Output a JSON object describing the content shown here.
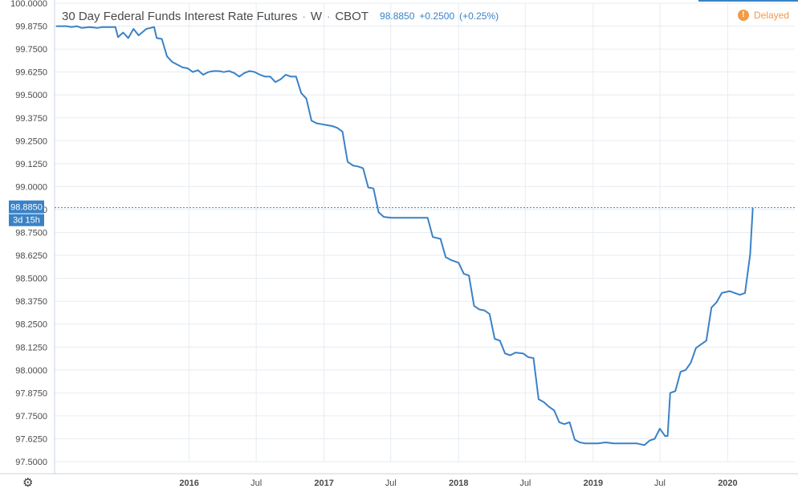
{
  "legend": {
    "title": "30 Day Federal Funds Interest Rate Futures",
    "separator": "·",
    "interval": "W",
    "exchange": "CBOT",
    "price": "98.8850",
    "change": "+0.2500",
    "change_pct": "(+0.25%)"
  },
  "status": {
    "delayed_label": "Delayed",
    "delayed_icon": "!"
  },
  "price_label": {
    "value": "98.8850",
    "countdown": "3d 15h"
  },
  "colors": {
    "line": "#3a82c6",
    "grid": "#e6ecf2",
    "axis_text": "#4a4a4a",
    "price_label_bg": "#3a82c6",
    "delayed": "#f29a47"
  },
  "chart_data": {
    "type": "line",
    "title": "30 Day Federal Funds Interest Rate Futures",
    "ylim": [
      97.5,
      100.0
    ],
    "y_ticks": [
      "97.5000",
      "97.6250",
      "97.7500",
      "97.8750",
      "98.0000",
      "98.1250",
      "98.2500",
      "98.3750",
      "98.5000",
      "98.6250",
      "98.7500",
      "98.8750",
      "99.0000",
      "99.1250",
      "99.2500",
      "99.3750",
      "99.5000",
      "99.6250",
      "99.7500",
      "99.8750",
      "100.0000"
    ],
    "x_range": [
      "2015-01-01",
      "2020-07-01"
    ],
    "x_ticks": [
      {
        "label": "2016",
        "date": "2016-01-01"
      },
      {
        "label": "Jul",
        "date": "2016-07-01"
      },
      {
        "label": "2017",
        "date": "2017-01-01"
      },
      {
        "label": "Jul",
        "date": "2017-07-01"
      },
      {
        "label": "2018",
        "date": "2018-01-01"
      },
      {
        "label": "Jul",
        "date": "2018-07-01"
      },
      {
        "label": "2019",
        "date": "2019-01-01"
      },
      {
        "label": "Jul",
        "date": "2019-07-01"
      },
      {
        "label": "2020",
        "date": "2020-01-01"
      }
    ],
    "current_value": 98.885,
    "grid": true,
    "series": [
      {
        "points": [
          [
            "2015-01-05",
            99.875
          ],
          [
            "2015-02-02",
            99.875
          ],
          [
            "2015-02-16",
            99.87
          ],
          [
            "2015-03-02",
            99.875
          ],
          [
            "2015-03-16",
            99.865
          ],
          [
            "2015-04-06",
            99.87
          ],
          [
            "2015-04-27",
            99.865
          ],
          [
            "2015-05-11",
            99.87
          ],
          [
            "2015-06-01",
            99.87
          ],
          [
            "2015-06-15",
            99.87
          ],
          [
            "2015-06-22",
            99.815
          ],
          [
            "2015-07-06",
            99.84
          ],
          [
            "2015-07-20",
            99.81
          ],
          [
            "2015-08-03",
            99.86
          ],
          [
            "2015-08-17",
            99.825
          ],
          [
            "2015-09-07",
            99.86
          ],
          [
            "2015-09-28",
            99.87
          ],
          [
            "2015-10-05",
            99.81
          ],
          [
            "2015-10-19",
            99.805
          ],
          [
            "2015-11-02",
            99.71
          ],
          [
            "2015-11-16",
            99.68
          ],
          [
            "2015-11-30",
            99.665
          ],
          [
            "2015-12-14",
            99.65
          ],
          [
            "2015-12-28",
            99.645
          ],
          [
            "2016-01-11",
            99.625
          ],
          [
            "2016-01-25",
            99.635
          ],
          [
            "2016-02-08",
            99.61
          ],
          [
            "2016-02-22",
            99.625
          ],
          [
            "2016-03-07",
            99.63
          ],
          [
            "2016-03-21",
            99.63
          ],
          [
            "2016-04-04",
            99.625
          ],
          [
            "2016-04-18",
            99.63
          ],
          [
            "2016-05-02",
            99.62
          ],
          [
            "2016-05-16",
            99.6
          ],
          [
            "2016-05-30",
            99.62
          ],
          [
            "2016-06-13",
            99.63
          ],
          [
            "2016-06-27",
            99.625
          ],
          [
            "2016-07-11",
            99.61
          ],
          [
            "2016-07-25",
            99.6
          ],
          [
            "2016-08-08",
            99.6
          ],
          [
            "2016-08-22",
            99.57
          ],
          [
            "2016-09-05",
            99.585
          ],
          [
            "2016-09-19",
            99.61
          ],
          [
            "2016-10-03",
            99.6
          ],
          [
            "2016-10-17",
            99.6
          ],
          [
            "2016-10-31",
            99.51
          ],
          [
            "2016-11-14",
            99.48
          ],
          [
            "2016-11-28",
            99.36
          ],
          [
            "2016-12-12",
            99.345
          ],
          [
            "2016-12-26",
            99.34
          ],
          [
            "2017-01-09",
            99.335
          ],
          [
            "2017-01-23",
            99.33
          ],
          [
            "2017-02-06",
            99.32
          ],
          [
            "2017-02-20",
            99.3
          ],
          [
            "2017-03-06",
            99.135
          ],
          [
            "2017-03-20",
            99.115
          ],
          [
            "2017-04-03",
            99.11
          ],
          [
            "2017-04-17",
            99.1
          ],
          [
            "2017-05-01",
            98.995
          ],
          [
            "2017-05-15",
            98.99
          ],
          [
            "2017-05-29",
            98.86
          ],
          [
            "2017-06-12",
            98.835
          ],
          [
            "2017-07-03",
            98.83
          ],
          [
            "2017-07-31",
            98.83
          ],
          [
            "2017-09-04",
            98.83
          ],
          [
            "2017-10-09",
            98.83
          ],
          [
            "2017-10-23",
            98.725
          ],
          [
            "2017-11-13",
            98.715
          ],
          [
            "2017-11-27",
            98.615
          ],
          [
            "2017-12-11",
            98.6
          ],
          [
            "2018-01-01",
            98.585
          ],
          [
            "2018-01-15",
            98.525
          ],
          [
            "2018-01-29",
            98.515
          ],
          [
            "2018-02-12",
            98.35
          ],
          [
            "2018-02-26",
            98.33
          ],
          [
            "2018-03-12",
            98.325
          ],
          [
            "2018-03-26",
            98.305
          ],
          [
            "2018-04-09",
            98.17
          ],
          [
            "2018-04-23",
            98.16
          ],
          [
            "2018-05-07",
            98.09
          ],
          [
            "2018-05-21",
            98.08
          ],
          [
            "2018-06-04",
            98.095
          ],
          [
            "2018-06-25",
            98.09
          ],
          [
            "2018-07-09",
            98.07
          ],
          [
            "2018-07-23",
            98.065
          ],
          [
            "2018-08-06",
            97.84
          ],
          [
            "2018-08-20",
            97.825
          ],
          [
            "2018-09-03",
            97.8
          ],
          [
            "2018-09-17",
            97.78
          ],
          [
            "2018-10-01",
            97.715
          ],
          [
            "2018-10-15",
            97.705
          ],
          [
            "2018-10-29",
            97.715
          ],
          [
            "2018-11-12",
            97.62
          ],
          [
            "2018-11-26",
            97.605
          ],
          [
            "2018-12-10",
            97.6
          ],
          [
            "2018-12-24",
            97.6
          ],
          [
            "2019-01-14",
            97.6
          ],
          [
            "2019-02-04",
            97.605
          ],
          [
            "2019-02-25",
            97.6
          ],
          [
            "2019-03-18",
            97.6
          ],
          [
            "2019-04-08",
            97.6
          ],
          [
            "2019-04-29",
            97.6
          ],
          [
            "2019-05-20",
            97.59
          ],
          [
            "2019-06-03",
            97.615
          ],
          [
            "2019-06-17",
            97.625
          ],
          [
            "2019-07-01",
            97.68
          ],
          [
            "2019-07-15",
            97.64
          ],
          [
            "2019-07-22",
            97.64
          ],
          [
            "2019-07-29",
            97.875
          ],
          [
            "2019-08-12",
            97.885
          ],
          [
            "2019-08-26",
            97.99
          ],
          [
            "2019-09-09",
            98.0
          ],
          [
            "2019-09-23",
            98.04
          ],
          [
            "2019-10-07",
            98.12
          ],
          [
            "2019-10-21",
            98.14
          ],
          [
            "2019-11-04",
            98.16
          ],
          [
            "2019-11-18",
            98.34
          ],
          [
            "2019-12-02",
            98.37
          ],
          [
            "2019-12-16",
            98.42
          ],
          [
            "2020-01-06",
            98.43
          ],
          [
            "2020-01-20",
            98.42
          ],
          [
            "2020-02-03",
            98.41
          ],
          [
            "2020-02-17",
            98.42
          ],
          [
            "2020-03-02",
            98.63
          ],
          [
            "2020-03-09",
            98.885
          ]
        ]
      }
    ]
  }
}
